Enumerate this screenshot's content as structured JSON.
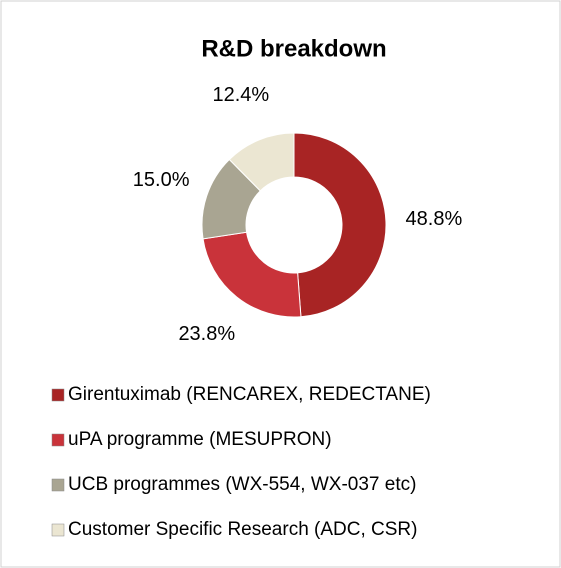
{
  "chart_data": {
    "type": "donut",
    "title": "R&D breakdown",
    "categories": [
      "Girentuximab (RENCAREX, REDECTANE)",
      "uPA programme (MESUPRON)",
      "UCB programmes (WX-554, WX-037 etc)",
      "Customer Specific Research (ADC, CSR)"
    ],
    "values": [
      48.8,
      23.8,
      15.0,
      12.4
    ],
    "value_labels": [
      "48.8%",
      "23.8%",
      "15.0%",
      "12.4%"
    ],
    "colors": [
      "#a82424",
      "#c9333a",
      "#a9a592",
      "#ebe6d2"
    ],
    "legend": "bottom"
  }
}
